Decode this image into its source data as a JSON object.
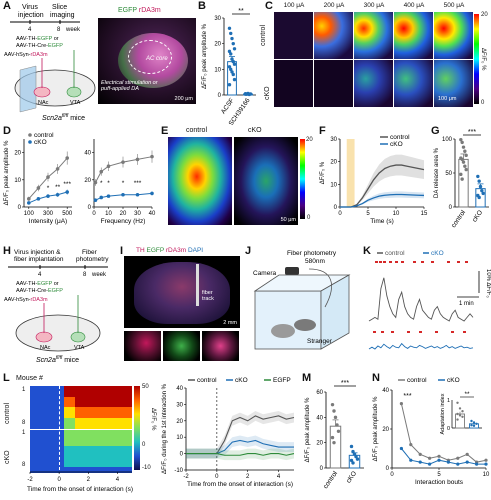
{
  "panels": {
    "A": {
      "label": "A",
      "step1": "Virus\ninjection",
      "step2": "Slice\nimaging",
      "t0": "4",
      "t1": "8",
      "unit": "week",
      "virus1": "AAV-TH-EGFP or",
      "virus2": "AAV-TH-Cre-EGFP",
      "virus3": "AAV-hSyn-rDA3m",
      "nac": "NAc",
      "vta": "VTA",
      "mice": "Scn2a",
      "mice_sup": "fl/fl",
      "mice_tail": " mice",
      "img_egfp": "EGFP",
      "img_rda": "rDA3m",
      "img_core": "AC core",
      "img_stim": "Electrical stimulation or\npuff-applied DA",
      "img_scale": "200 μm"
    },
    "B": {
      "label": "B",
      "sig": "**"
    },
    "C": {
      "label": "C",
      "intensities": [
        "100 μA",
        "200 μA",
        "300 μA",
        "400 μA",
        "500 μA"
      ],
      "rows": [
        "control",
        "cKO"
      ],
      "scale": "100 μm",
      "cbar_max": "20",
      "cbar_min": "0",
      "cbar_label": "ΔF/F₀ %"
    },
    "D": {
      "label": "D",
      "legend": [
        "control",
        "cKO"
      ]
    },
    "E": {
      "label": "E",
      "titles": [
        "control",
        "cKO"
      ],
      "cbar_max": "20",
      "cbar_min": "0",
      "cbar_label": "ΔF/F₀ %",
      "scale": "50 μm"
    },
    "F": {
      "label": "F",
      "legend": [
        "control",
        "cKO"
      ]
    },
    "G": {
      "label": "G",
      "sig": "***"
    },
    "H": {
      "label": "H",
      "step1": "Virus injection &\nfiber implantation",
      "step2": "Fiber\nphotometry",
      "t0": "4",
      "t1": "8",
      "unit": "week",
      "virus1": "AAV-TH-EGFP or",
      "virus2": "AAV-TH-Cre-EGFP",
      "virus3": "AAV-hSyn-rDA3m",
      "nac": "NAc",
      "vta": "VTA",
      "mice": "Scn2a",
      "mice_sup": "fl/fl",
      "mice_tail": " mice"
    },
    "I": {
      "label": "I",
      "th": "TH",
      "egfp": "EGFP",
      "rda": "rDA3m",
      "dapi": "DAPI",
      "fiber": "fiber\ntrack",
      "scale": "2 mm"
    },
    "J": {
      "label": "J",
      "fiber": "Fiber photometry",
      "wavelength": "580nm",
      "camera": "Camera",
      "stranger": "Stranger"
    },
    "K": {
      "label": "K",
      "legend": [
        "control",
        "cKO"
      ],
      "scale_y": "10% ΔF/F₀",
      "scale_x": "1 min"
    },
    "L": {
      "label": "L",
      "heat_title": "Mouse #",
      "rows": [
        "control",
        "cKO"
      ],
      "ticks_control": [
        "1",
        "8"
      ],
      "ticks_cko": [
        "1",
        "8"
      ],
      "cbar": [
        "50",
        "0",
        "-10"
      ],
      "cbar_label": "ΔF/F₀ %",
      "legend": [
        "control",
        "cKO",
        "EGFP"
      ]
    },
    "M": {
      "label": "M",
      "sig": "***"
    },
    "N": {
      "label": "N",
      "legend": [
        "control",
        "cKO"
      ],
      "sig_main": "***",
      "inset_sig": "**",
      "inset_ylabel": "Adaptation index"
    }
  },
  "chart_data": [
    {
      "id": "B",
      "type": "bar",
      "categories": [
        "ACSF",
        "SCH39166"
      ],
      "values": [
        13,
        0.4
      ],
      "errors": [
        2,
        0.2
      ],
      "points": [
        [
          26,
          24,
          22,
          20,
          18,
          17,
          16,
          14,
          13,
          12,
          11,
          10,
          9,
          8,
          6,
          4
        ],
        [
          0.5,
          0.3,
          0.6,
          0.2,
          0.4,
          0.3
        ]
      ],
      "ylabel": "ΔF/F₀ peak amplitude %",
      "ylim": [
        0,
        30
      ],
      "yticks": [
        0,
        10,
        20,
        30
      ]
    },
    {
      "id": "D1",
      "type": "line",
      "x": [
        100,
        200,
        300,
        400,
        500
      ],
      "series": [
        {
          "name": "control",
          "values": [
            3,
            7,
            11,
            14,
            18
          ],
          "err": [
            0.8,
            1.2,
            1.6,
            1.8,
            2.4
          ],
          "color": "#7a7a7a"
        },
        {
          "name": "cKO",
          "values": [
            1.5,
            3,
            4,
            4.5,
            5.5
          ],
          "err": [
            0.4,
            0.6,
            0.7,
            0.8,
            0.9
          ],
          "color": "#1f6fb5"
        }
      ],
      "sig": [
        "*",
        "**",
        "***"
      ],
      "xlabel": "Intensity (μA)",
      "ylabel": "ΔF/F₀ peak amplitude %",
      "xticks": [
        100,
        300,
        500
      ],
      "ylim": [
        0,
        25
      ],
      "yticks": [
        0,
        10,
        20
      ]
    },
    {
      "id": "D2",
      "type": "line",
      "x": [
        1,
        5,
        10,
        20,
        30,
        40
      ],
      "series": [
        {
          "name": "control",
          "values": [
            18,
            26,
            30,
            33,
            35,
            37
          ],
          "err": [
            2.5,
            3,
            3.5,
            4,
            4,
            4.5
          ],
          "color": "#7a7a7a"
        },
        {
          "name": "cKO",
          "values": [
            5,
            7,
            8,
            9,
            9,
            10
          ],
          "err": [
            0.8,
            1,
            1,
            1.2,
            1.2,
            1.3
          ],
          "color": "#1f6fb5"
        }
      ],
      "sig": [
        "*",
        "*",
        "*",
        "***"
      ],
      "xlabel": "Frequency (Hz)",
      "xticks": [
        0,
        10,
        20,
        30,
        40
      ],
      "ylim": [
        0,
        50
      ],
      "yticks": [
        0,
        20,
        40
      ]
    },
    {
      "id": "F",
      "type": "line",
      "x": [
        0,
        1,
        2,
        3,
        4,
        5,
        6,
        7,
        8,
        9,
        10,
        11,
        12,
        13,
        14,
        15
      ],
      "series": [
        {
          "name": "control",
          "values": [
            0,
            0,
            0,
            1,
            4,
            8,
            12,
            15,
            17,
            18,
            18.5,
            18.5,
            18,
            17.5,
            17,
            16.5
          ],
          "color": "#555555"
        },
        {
          "name": "cKO",
          "values": [
            0,
            0,
            0,
            0.5,
            1.5,
            3,
            4,
            4.8,
            5.2,
            5.4,
            5.5,
            5.5,
            5.4,
            5.3,
            5.2,
            5.1
          ],
          "color": "#1f6fb5"
        }
      ],
      "band_pct": 0.25,
      "highlight": [
        1.2,
        2.6
      ],
      "xlabel": "Time (s)",
      "ylabel": "ΔF/F₀ %",
      "xticks": [
        0,
        5,
        10,
        15
      ],
      "ylim": [
        0,
        30
      ],
      "yticks": [
        0,
        10,
        20,
        30
      ]
    },
    {
      "id": "G",
      "type": "bar",
      "categories": [
        "control",
        "cKO"
      ],
      "values": [
        70,
        27
      ],
      "errors": [
        8,
        7
      ],
      "points": [
        [
          99,
          95,
          88,
          82,
          76,
          72,
          70,
          66,
          60,
          55,
          48,
          41
        ],
        [
          45,
          38,
          30,
          24,
          20,
          17,
          14
        ]
      ],
      "ylabel": "DA release area %",
      "ylim": [
        0,
        100
      ],
      "yticks": [
        0,
        50,
        100
      ]
    },
    {
      "id": "K",
      "type": "line",
      "series": [
        {
          "name": "control",
          "color": "#555555",
          "values": [
            0,
            0.5,
            1,
            0.5,
            9,
            12,
            7,
            4,
            2,
            1,
            6,
            8,
            4,
            2,
            1,
            0.5,
            4,
            6,
            3,
            2,
            1,
            0.5,
            3,
            4,
            2,
            1,
            0.5,
            0,
            2,
            3,
            1,
            0.5,
            0,
            1,
            2,
            1
          ]
        },
        {
          "name": "cKO",
          "color": "#1f6fb5",
          "values": [
            0,
            0.3,
            0,
            0.5,
            0.2,
            0.8,
            0.4,
            0.1,
            0.6,
            0.3,
            0.2,
            0.9,
            0.4,
            0.1,
            0.5,
            0.3,
            0.2,
            0.6,
            0.4,
            0.1,
            0.3,
            0.5,
            0.2,
            0.4,
            0.1,
            0.3,
            0.6,
            0.2,
            0.4,
            0.1,
            0.3,
            0.5,
            0.2,
            0.3,
            0.1,
            0.2
          ]
        }
      ]
    },
    {
      "id": "L-heatmap",
      "type": "heatmap",
      "xlabel": "Time from the onset of interaction (s)",
      "xticks": [
        -2,
        0,
        2,
        4
      ],
      "ylabel": "Mouse #"
    },
    {
      "id": "L-trace",
      "type": "line",
      "x": [
        -2,
        -1.5,
        -1,
        -0.5,
        0,
        0.5,
        1,
        1.5,
        2,
        2.5,
        3,
        3.5,
        4,
        4.5,
        5
      ],
      "series": [
        {
          "name": "control",
          "color": "#555555",
          "values": [
            0,
            0,
            0,
            0,
            0,
            8,
            20,
            22,
            20,
            23,
            21,
            22,
            23,
            21,
            22
          ]
        },
        {
          "name": "cKO",
          "color": "#1f6fb5",
          "values": [
            0,
            0,
            0,
            0,
            0,
            2,
            7,
            8,
            7,
            8,
            6,
            5,
            4,
            4,
            4
          ]
        },
        {
          "name": "EGFP",
          "color": "#2e8b3a",
          "values": [
            0,
            0,
            0,
            0,
            0,
            -1,
            -1,
            -1,
            0,
            0,
            -1,
            0,
            0,
            -1,
            0
          ]
        }
      ],
      "xlabel": "Time from the onset of interaction (s)",
      "ylabel": "ΔF/F₀ during the 1st interaction %",
      "xticks": [
        -2,
        0,
        2,
        4
      ],
      "ylim": [
        -10,
        40
      ],
      "yticks": [
        -10,
        0,
        10,
        20,
        30,
        40
      ]
    },
    {
      "id": "M",
      "type": "bar",
      "categories": [
        "control",
        "cKO"
      ],
      "values": [
        33,
        10
      ],
      "errors": [
        5,
        2
      ],
      "points": [
        [
          50,
          45,
          40,
          34,
          29,
          24,
          20
        ],
        [
          17,
          13,
          11,
          9,
          7,
          6,
          4
        ]
      ],
      "ylabel": "ΔF/F₀ peak amplitude %",
      "ylim": [
        0,
        60
      ],
      "yticks": [
        0,
        20,
        40,
        60
      ]
    },
    {
      "id": "N",
      "type": "line",
      "x": [
        1,
        2,
        3,
        4,
        5,
        6,
        7,
        8,
        9,
        10
      ],
      "series": [
        {
          "name": "control",
          "color": "#7a7a7a",
          "values": [
            33,
            12,
            7,
            5,
            6,
            4,
            5,
            7,
            3,
            4
          ]
        },
        {
          "name": "cKO",
          "color": "#1f6fb5",
          "values": [
            10,
            4,
            3,
            2,
            4,
            3,
            2,
            3,
            2,
            2
          ]
        }
      ],
      "xlabel": "Interaction bouts",
      "ylabel": "ΔF/F₀ peak amplitude %",
      "xticks": [
        0,
        5,
        10
      ],
      "ylim": [
        0,
        40
      ],
      "yticks": [
        0,
        20,
        40
      ]
    },
    {
      "id": "N-inset",
      "type": "bar",
      "categories": [
        "control",
        "cKO"
      ],
      "values": [
        0.5,
        0.15
      ],
      "errors": [
        0.08,
        0.04
      ],
      "points": [
        [
          0.9,
          0.7,
          0.6,
          0.5,
          0.45,
          0.4,
          0.3
        ],
        [
          0.25,
          0.2,
          0.15,
          0.1,
          0.08
        ]
      ],
      "ylabel": "Adaptation index",
      "ylim": [
        0,
        1
      ],
      "yticks": [
        0,
        1
      ]
    }
  ]
}
